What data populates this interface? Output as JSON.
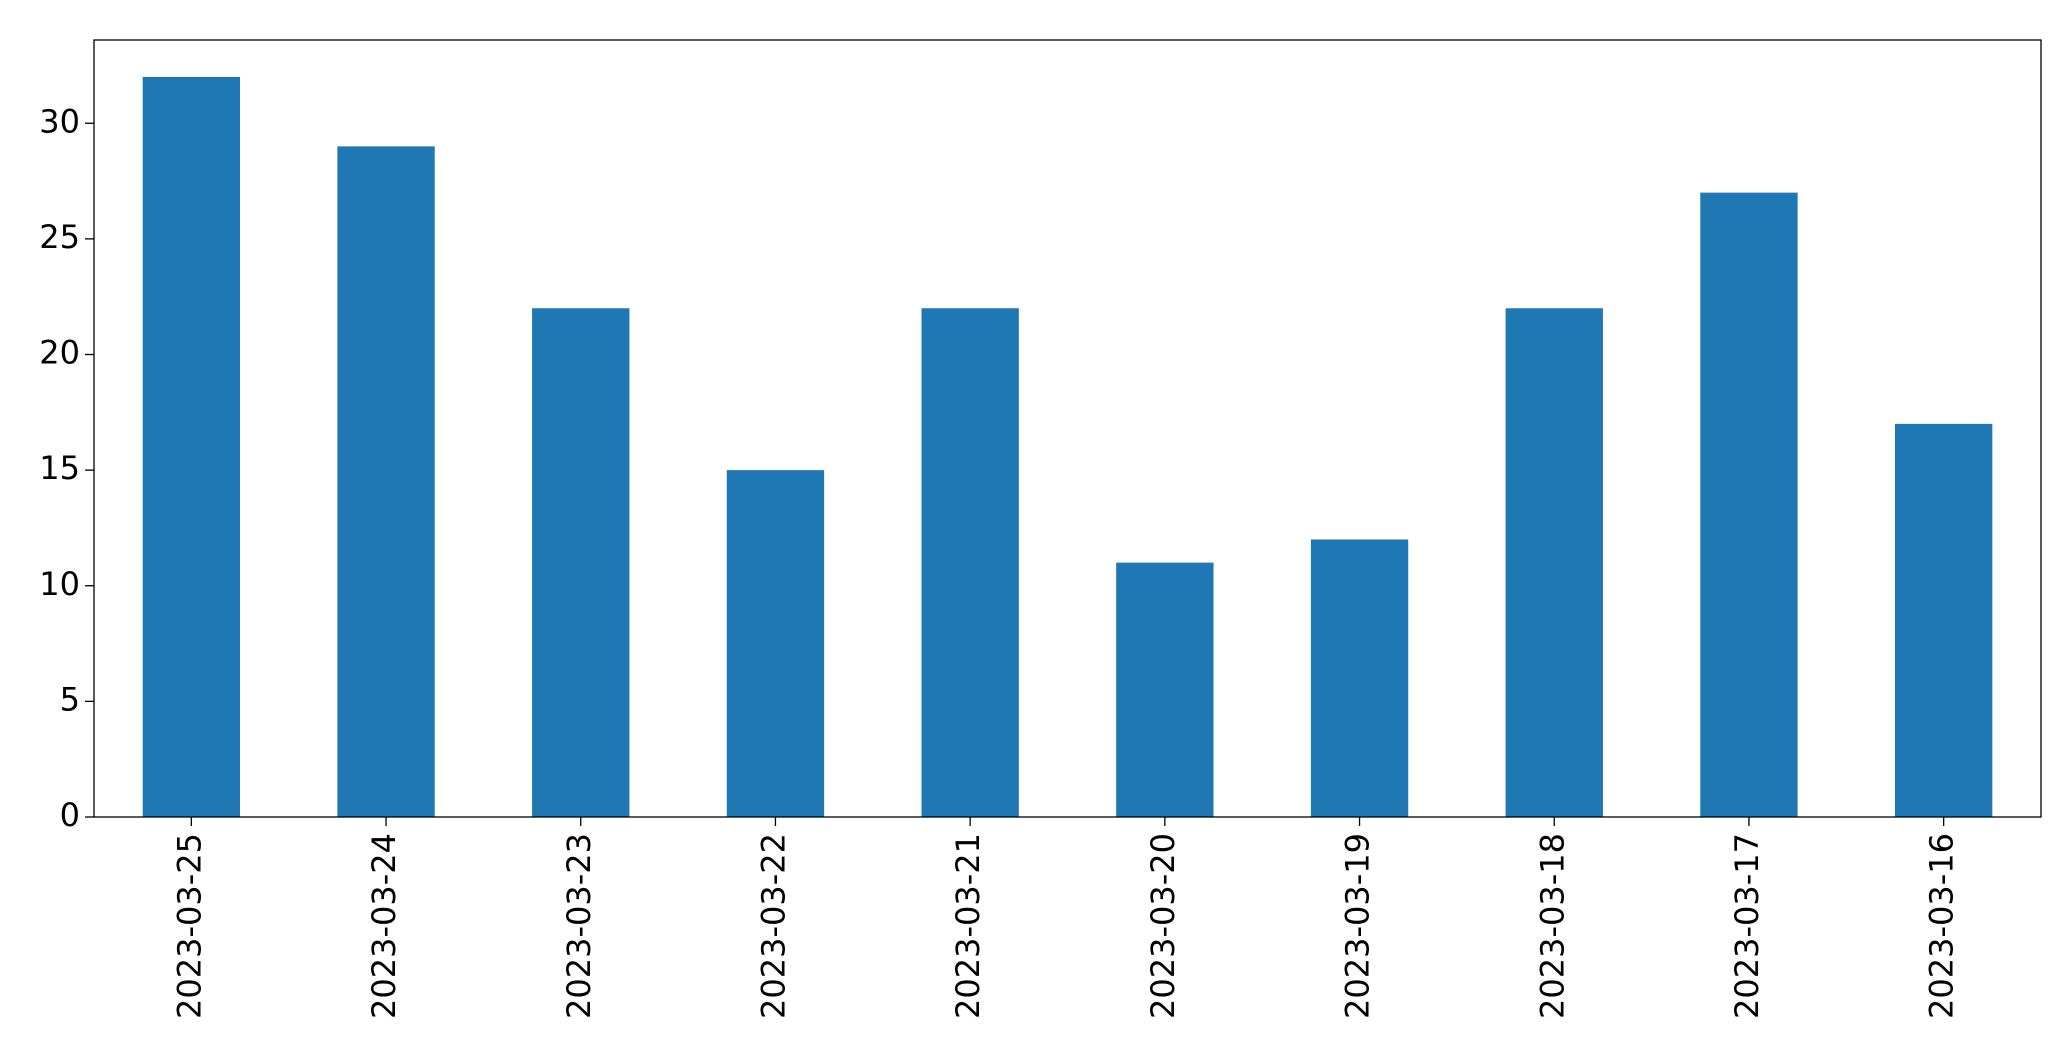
{
  "chart_data": {
    "type": "bar",
    "categories": [
      "2023-03-25",
      "2023-03-24",
      "2023-03-23",
      "2023-03-22",
      "2023-03-21",
      "2023-03-20",
      "2023-03-19",
      "2023-03-18",
      "2023-03-17",
      "2023-03-16"
    ],
    "values": [
      32,
      29,
      22,
      15,
      22,
      11,
      12,
      22,
      27,
      17
    ],
    "color": "#1f77b4",
    "ylim": [
      0,
      33.6
    ],
    "yticks": [
      0,
      5,
      10,
      15,
      20,
      25,
      30
    ],
    "grid": false
  }
}
